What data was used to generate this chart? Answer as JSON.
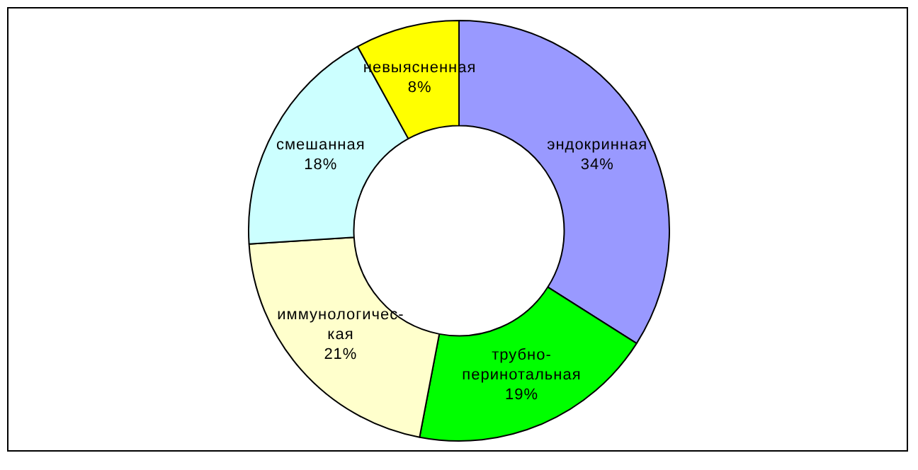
{
  "chart_data": {
    "type": "donut",
    "categories": [
      "эндокринная",
      "трубно-\nперинотальная",
      "иммунологичес-\nкая",
      "смешанная",
      "невыясненная"
    ],
    "values": [
      34,
      19,
      21,
      18,
      8
    ],
    "colors": [
      "#9999ff",
      "#00ff00",
      "#ffffcc",
      "#ccffff",
      "#ffff00"
    ],
    "value_labels": [
      "34%",
      "19%",
      "21%",
      "18%",
      "8%"
    ],
    "legend": false
  }
}
